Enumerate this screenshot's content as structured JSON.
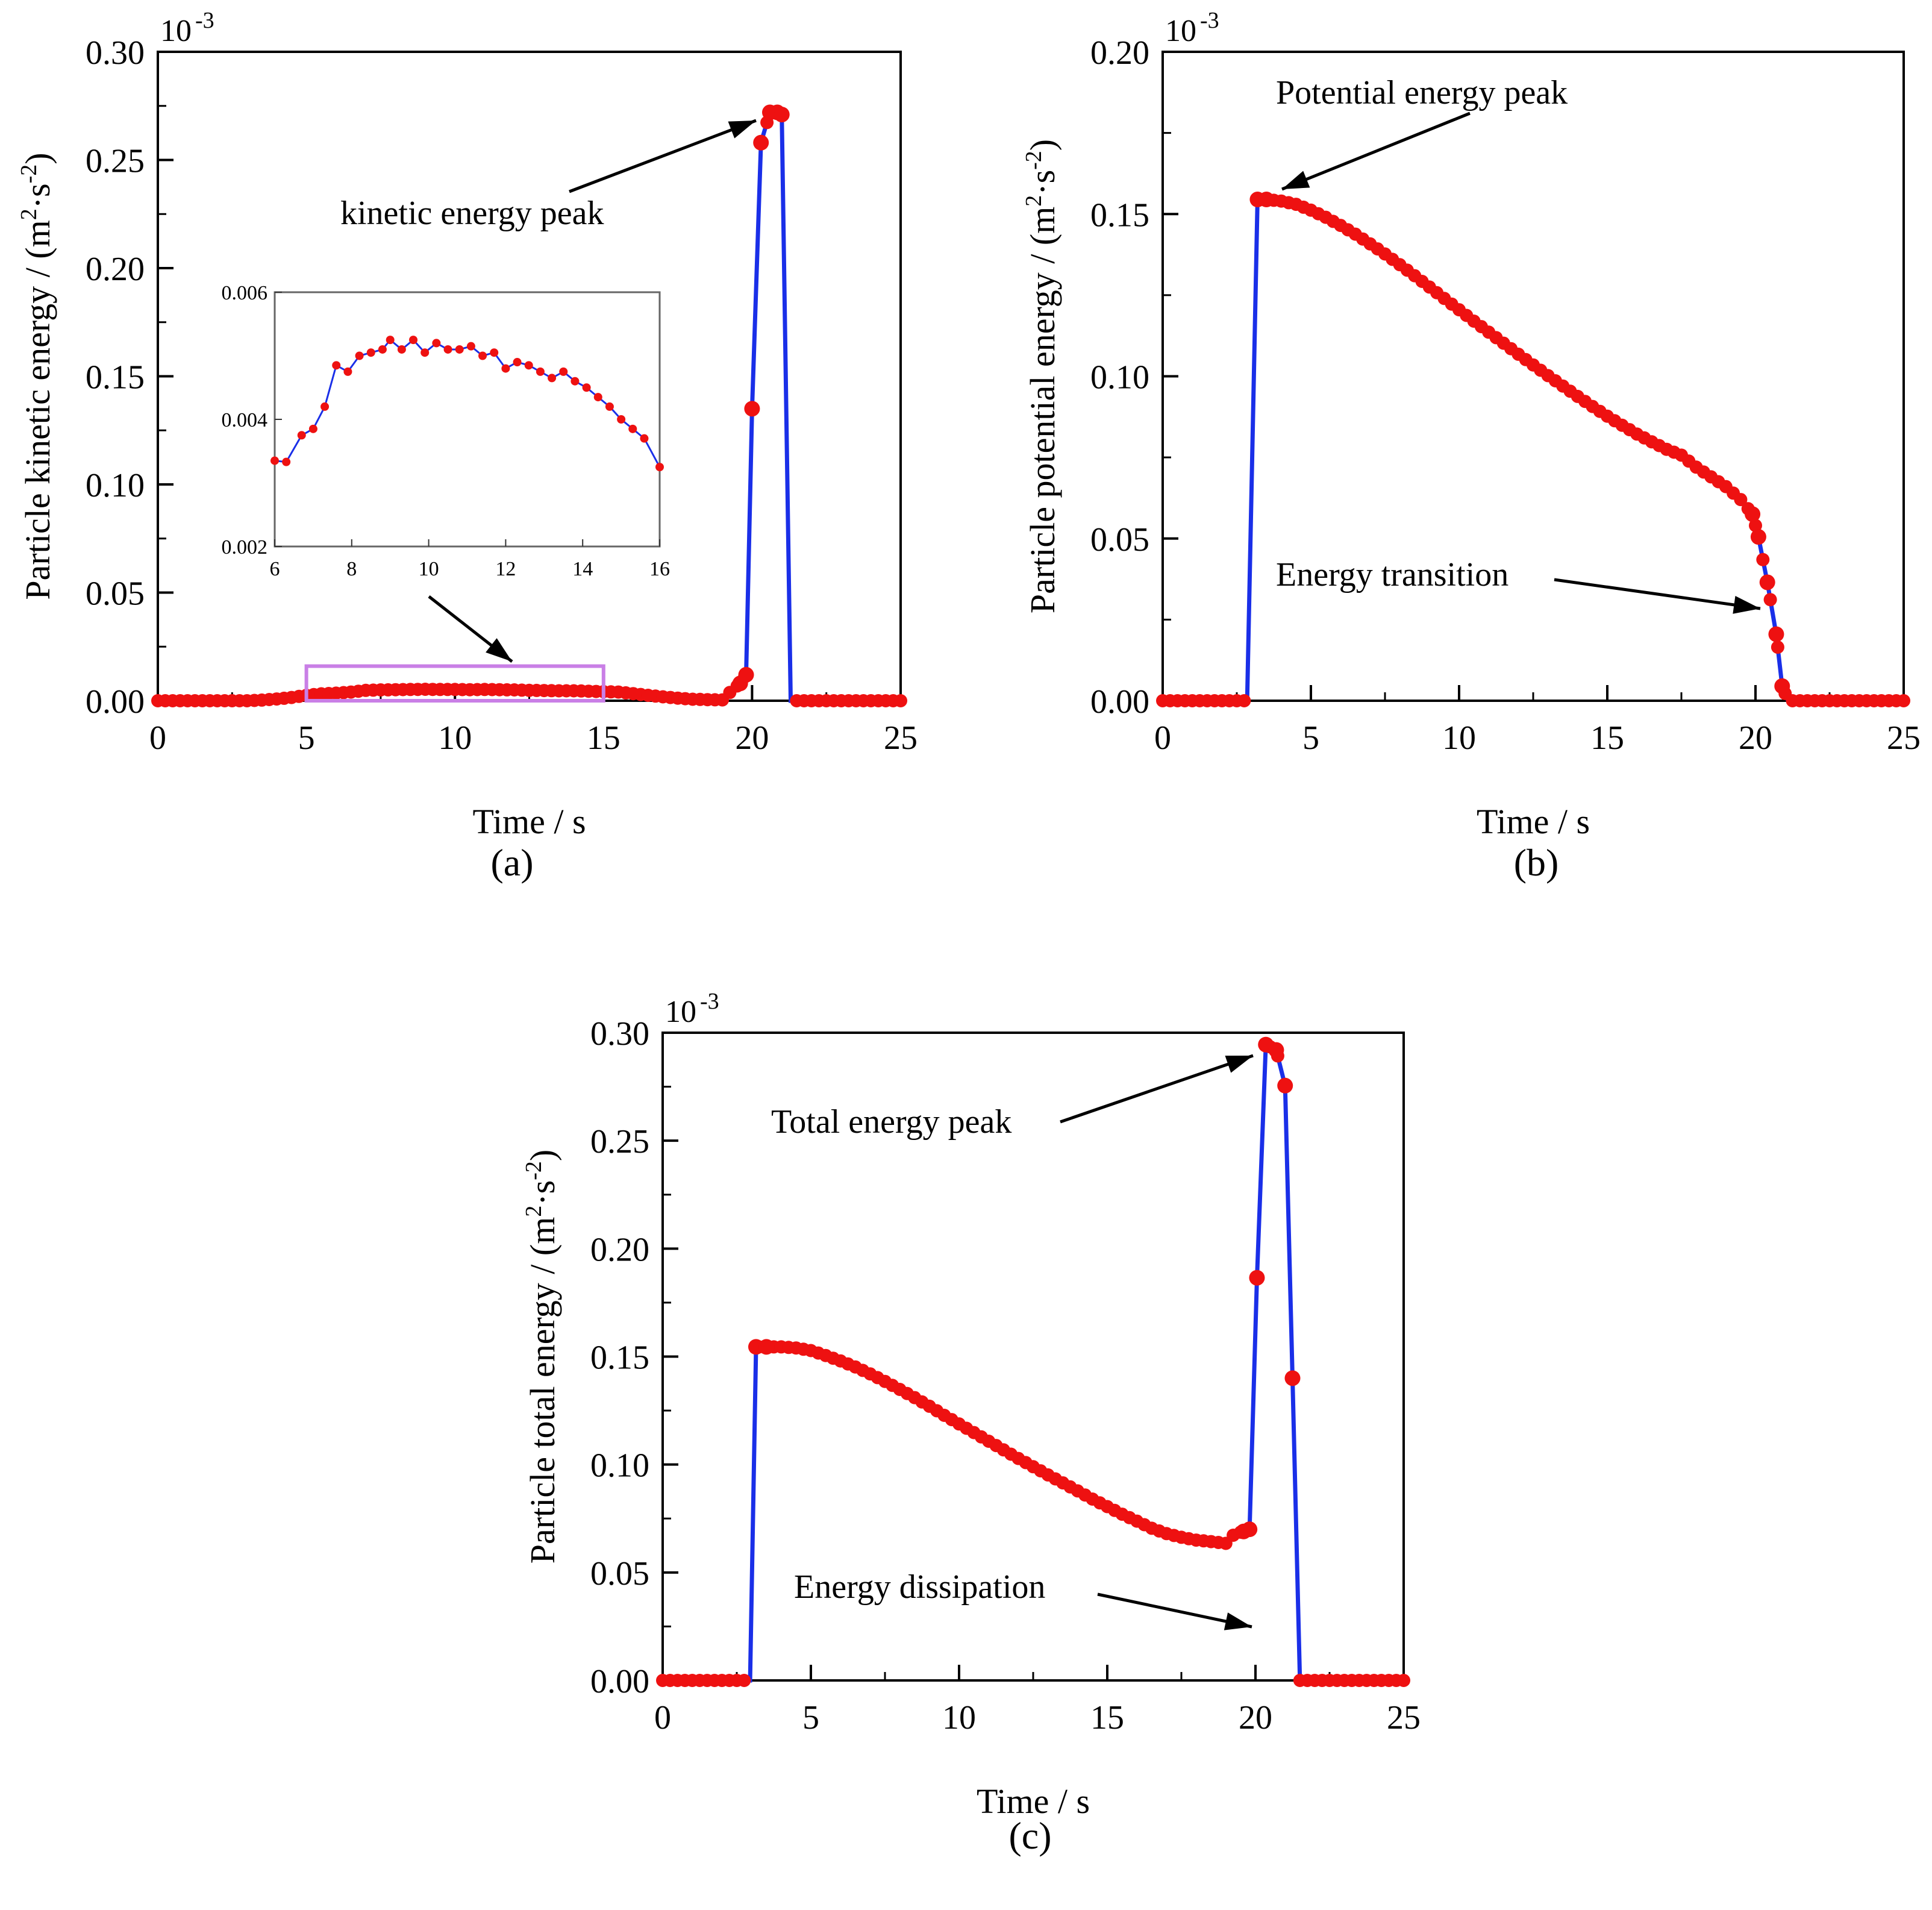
{
  "figure": {
    "captions": [
      "(a)",
      "(b)",
      "(c)"
    ]
  },
  "colors": {
    "line": "#1a2fe8",
    "marker": "#ee1111",
    "axis": "#000000",
    "inset_box": "#c97fe6"
  },
  "chart_data": [
    {
      "id": "a",
      "type": "line",
      "title": "",
      "xlabel": "Time / s",
      "ylabel_main": "Particle kinetic energy / (m",
      "ylabel_sup1": "2",
      "ylabel_mid": "·s",
      "ylabel_sup2": "-2",
      "ylabel_end": ")",
      "multiplier_base": "10",
      "multiplier_exp": "-3",
      "xlim": [
        0,
        25
      ],
      "ylim": [
        0,
        0.3
      ],
      "xticks": [
        "0",
        "5",
        "10",
        "15",
        "20",
        "25"
      ],
      "yticks": [
        "0.00",
        "0.05",
        "0.10",
        "0.15",
        "0.20",
        "0.25",
        "0.30"
      ],
      "annotations": [
        {
          "text": "kinetic energy peak",
          "x": 20.5,
          "y": 0.268
        }
      ],
      "highlight_box": {
        "x": [
          5,
          15
        ],
        "y": [
          0,
          0.016
        ]
      },
      "series": [
        {
          "x": [
            0,
            0.5,
            1,
            1.5,
            2,
            2.5,
            3,
            3.5,
            4,
            4.5,
            5,
            5.5,
            6,
            6.5,
            7,
            7.5,
            8,
            8.5,
            9,
            9.5,
            10,
            10.5,
            11,
            11.5,
            12,
            12.5,
            13,
            13.5,
            14,
            14.5,
            15,
            15.5,
            16,
            16.5,
            17,
            17.5,
            18,
            18.5,
            19,
            19.3,
            19.6,
            19.8,
            20.0,
            20.3,
            20.6,
            20.85,
            21.0,
            21.3,
            21.6,
            22,
            22.5,
            23,
            23.5,
            24,
            24.5,
            25
          ],
          "y": [
            0,
            0,
            0,
            0,
            0,
            0,
            0,
            0.0003,
            0.0008,
            0.0015,
            0.0025,
            0.0032,
            0.0035,
            0.004,
            0.0048,
            0.005,
            0.0051,
            0.0052,
            0.0053,
            0.0052,
            0.0052,
            0.0051,
            0.0052,
            0.0051,
            0.005,
            0.0048,
            0.0047,
            0.0046,
            0.0046,
            0.0044,
            0.0042,
            0.004,
            0.0033,
            0.0025,
            0.0018,
            0.0012,
            0.0007,
            0.0005,
            0.0004,
            0.0045,
            0.008,
            0.012,
            0.135,
            0.258,
            0.272,
            0.272,
            0.271,
            0,
            0,
            0,
            0,
            0,
            0,
            0,
            0,
            0
          ]
        }
      ],
      "inset": {
        "xlim": [
          6,
          16
        ],
        "ylim": [
          0.002,
          0.006
        ],
        "xticks": [
          "6",
          "8",
          "10",
          "12",
          "14",
          "16"
        ],
        "yticks": [
          "0.002",
          "0.004",
          "0.006"
        ],
        "x": [
          6,
          6.3,
          6.7,
          7.0,
          7.3,
          7.6,
          7.9,
          8.2,
          8.5,
          8.8,
          9.0,
          9.3,
          9.6,
          9.9,
          10.2,
          10.5,
          10.8,
          11.1,
          11.4,
          11.7,
          12.0,
          12.3,
          12.6,
          12.9,
          13.2,
          13.5,
          13.8,
          14.1,
          14.4,
          14.7,
          15.0,
          15.3,
          15.6,
          16.0
        ],
        "y": [
          0.00335,
          0.00333,
          0.00375,
          0.00385,
          0.0042,
          0.00485,
          0.00475,
          0.005,
          0.00505,
          0.0051,
          0.00525,
          0.0051,
          0.00525,
          0.00505,
          0.0052,
          0.0051,
          0.0051,
          0.00515,
          0.005,
          0.00505,
          0.0048,
          0.0049,
          0.00485,
          0.00475,
          0.00465,
          0.00475,
          0.0046,
          0.0045,
          0.00435,
          0.0042,
          0.004,
          0.00385,
          0.0037,
          0.00325
        ]
      }
    },
    {
      "id": "b",
      "type": "line",
      "title": "",
      "xlabel": "Time / s",
      "ylabel_main": "Particle potential energy / (m",
      "ylabel_sup1": "2",
      "ylabel_mid": "·s",
      "ylabel_sup2": "-2",
      "ylabel_end": ")",
      "multiplier_base": "10",
      "multiplier_exp": "-3",
      "xlim": [
        0,
        25
      ],
      "ylim": [
        0,
        0.2
      ],
      "xticks": [
        "0",
        "5",
        "10",
        "15",
        "20",
        "25"
      ],
      "yticks": [
        "0.00",
        "0.05",
        "0.10",
        "0.15",
        "0.20"
      ],
      "annotations": [
        {
          "text": "Potential energy peak",
          "x": 4.0,
          "y": 0.157
        },
        {
          "text": "Energy transition",
          "x": 20.0,
          "y": 0.028
        }
      ],
      "series": [
        {
          "x": [
            0,
            0.5,
            1,
            1.5,
            2,
            2.5,
            2.85,
            3.2,
            3.5,
            4,
            4.5,
            5,
            5.5,
            6,
            6.5,
            7,
            7.5,
            8,
            8.5,
            9,
            9.5,
            10,
            10.5,
            11,
            11.5,
            12,
            12.5,
            13,
            13.5,
            14,
            14.5,
            15,
            15.5,
            16,
            16.5,
            17,
            17.5,
            18,
            18.5,
            19,
            19.5,
            19.9,
            20.1,
            20.4,
            20.7,
            20.9,
            21.1,
            21.5,
            22,
            22.5,
            23,
            23.5,
            24,
            24.5,
            25
          ],
          "y": [
            0,
            0,
            0,
            0,
            0,
            0,
            0,
            0.1545,
            0.1545,
            0.154,
            0.153,
            0.1512,
            0.149,
            0.1465,
            0.1438,
            0.1408,
            0.1377,
            0.1344,
            0.131,
            0.1275,
            0.124,
            0.1205,
            0.117,
            0.1136,
            0.1102,
            0.1068,
            0.1035,
            0.1002,
            0.097,
            0.0938,
            0.0907,
            0.0877,
            0.0849,
            0.0822,
            0.0798,
            0.0775,
            0.0757,
            0.072,
            0.069,
            0.066,
            0.062,
            0.0575,
            0.0505,
            0.0365,
            0.0205,
            0.0045,
            0,
            0,
            0,
            0,
            0,
            0,
            0,
            0,
            0
          ]
        }
      ]
    },
    {
      "id": "c",
      "type": "line",
      "title": "",
      "xlabel": "Time / s",
      "ylabel_main": "Particle total energy / (m",
      "ylabel_sup1": "2",
      "ylabel_mid": "·s",
      "ylabel_sup2": "-2",
      "ylabel_end": ")",
      "multiplier_base": "10",
      "multiplier_exp": "-3",
      "xlim": [
        0,
        25
      ],
      "ylim": [
        0,
        0.3
      ],
      "xticks": [
        "0",
        "5",
        "10",
        "15",
        "20",
        "25"
      ],
      "yticks": [
        "0.00",
        "0.05",
        "0.10",
        "0.15",
        "0.20",
        "0.25",
        "0.30"
      ],
      "annotations": [
        {
          "text": "Total energy peak",
          "x": 20.1,
          "y": 0.29
        },
        {
          "text": "Energy dissipation",
          "x": 21.0,
          "y": 0.024
        }
      ],
      "series": [
        {
          "x": [
            0,
            0.5,
            1,
            1.5,
            2,
            2.5,
            2.95,
            3.15,
            3.5,
            4,
            4.5,
            5,
            5.5,
            6,
            6.5,
            7,
            7.5,
            8,
            8.5,
            9,
            9.5,
            10,
            10.5,
            11,
            11.5,
            12,
            12.5,
            13,
            13.5,
            14,
            14.5,
            15,
            15.5,
            16,
            16.5,
            17,
            17.5,
            18,
            18.5,
            19,
            19.3,
            19.6,
            19.8,
            20.05,
            20.35,
            20.7,
            21.0,
            21.25,
            21.5,
            22,
            22.5,
            23,
            23.5,
            24,
            24.5,
            25
          ],
          "y": [
            0,
            0,
            0,
            0,
            0,
            0,
            0,
            0.1545,
            0.1545,
            0.1545,
            0.154,
            0.1528,
            0.1505,
            0.148,
            0.1452,
            0.142,
            0.1385,
            0.1348,
            0.131,
            0.127,
            0.1228,
            0.1188,
            0.1148,
            0.1108,
            0.1068,
            0.1028,
            0.099,
            0.0952,
            0.0915,
            0.0878,
            0.084,
            0.0805,
            0.077,
            0.0738,
            0.0705,
            0.068,
            0.0663,
            0.065,
            0.0643,
            0.0635,
            0.068,
            0.069,
            0.07,
            0.1865,
            0.2945,
            0.292,
            0.2755,
            0.14,
            0,
            0,
            0,
            0,
            0,
            0,
            0,
            0
          ]
        }
      ]
    }
  ]
}
